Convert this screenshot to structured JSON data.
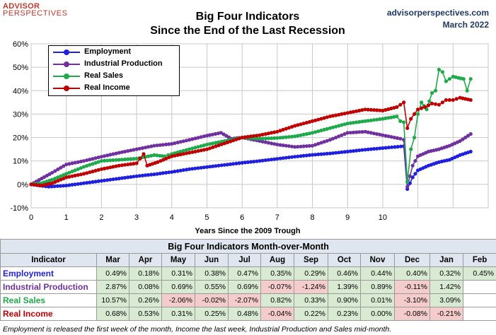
{
  "header": {
    "logo_line1": "ADVISOR",
    "logo_line2": "PERSPECTIVES",
    "title_line1": "Big Four Indicators",
    "title_line2": "Since the End of the Last Recession",
    "site": "advisorperspectives.com",
    "date": "March  2022"
  },
  "chart_data": {
    "type": "line",
    "title": "Big Four Indicators Since the End of the Last Recession",
    "xlabel": "Years Since the 2009 Trough",
    "ylabel": "",
    "xlim": [
      0,
      13
    ],
    "ylim": [
      -10,
      60
    ],
    "x_ticks": [
      "0",
      "1",
      "2",
      "3",
      "4",
      "5",
      "6",
      "7",
      "8",
      "9",
      "10"
    ],
    "y_ticks": [
      "-10%",
      "0%",
      "10%",
      "20%",
      "30%",
      "40%",
      "50%",
      "60%"
    ],
    "grid": true,
    "legend_position": "top-left",
    "series": [
      {
        "name": "Employment",
        "color": "#1f1fe0",
        "points": [
          [
            0,
            0
          ],
          [
            0.5,
            -1
          ],
          [
            1,
            -0.5
          ],
          [
            1.5,
            0.5
          ],
          [
            2,
            1.5
          ],
          [
            2.5,
            2.5
          ],
          [
            3,
            3.5
          ],
          [
            3.5,
            4.3
          ],
          [
            4,
            5.3
          ],
          [
            4.5,
            6.5
          ],
          [
            5,
            7.4
          ],
          [
            5.5,
            8.3
          ],
          [
            6,
            9.2
          ],
          [
            6.5,
            10
          ],
          [
            7,
            10.9
          ],
          [
            7.5,
            11.8
          ],
          [
            8,
            12.6
          ],
          [
            8.5,
            13.2
          ],
          [
            9,
            14
          ],
          [
            9.5,
            14.8
          ],
          [
            10,
            15.5
          ],
          [
            10.6,
            16.3
          ],
          [
            10.7,
            -2
          ],
          [
            10.85,
            3
          ],
          [
            11,
            6
          ],
          [
            11.3,
            8
          ],
          [
            11.6,
            9.5
          ],
          [
            11.9,
            10.5
          ],
          [
            12.2,
            12.5
          ],
          [
            12.5,
            14
          ]
        ]
      },
      {
        "name": "Industrial Production",
        "color": "#7030a0",
        "points": [
          [
            0,
            0
          ],
          [
            0.3,
            2.5
          ],
          [
            0.6,
            5
          ],
          [
            1,
            8.5
          ],
          [
            1.5,
            10
          ],
          [
            2,
            11.8
          ],
          [
            2.5,
            13.5
          ],
          [
            3,
            15
          ],
          [
            3.5,
            16.5
          ],
          [
            4,
            17.3
          ],
          [
            4.5,
            19
          ],
          [
            5,
            20.8
          ],
          [
            5.4,
            22
          ],
          [
            5.7,
            19.5
          ],
          [
            6,
            20
          ],
          [
            6.5,
            18.5
          ],
          [
            7,
            17
          ],
          [
            7.5,
            16
          ],
          [
            8,
            16.5
          ],
          [
            8.5,
            19
          ],
          [
            9,
            22
          ],
          [
            9.5,
            22.5
          ],
          [
            10,
            21
          ],
          [
            10.5,
            19.5
          ],
          [
            10.6,
            19
          ],
          [
            10.7,
            -1
          ],
          [
            10.85,
            8
          ],
          [
            11,
            12
          ],
          [
            11.3,
            14
          ],
          [
            11.6,
            15
          ],
          [
            11.9,
            16.5
          ],
          [
            12.2,
            18.5
          ],
          [
            12.5,
            21.5
          ]
        ]
      },
      {
        "name": "Real Sales",
        "color": "#1eaa4a",
        "points": [
          [
            0,
            0
          ],
          [
            0.3,
            0.5
          ],
          [
            0.6,
            2
          ],
          [
            1,
            4.5
          ],
          [
            1.5,
            7.5
          ],
          [
            2,
            10
          ],
          [
            2.5,
            10.5
          ],
          [
            3,
            11
          ],
          [
            3.5,
            12.5
          ],
          [
            3.8,
            12
          ],
          [
            4,
            13
          ],
          [
            4.5,
            15
          ],
          [
            5,
            17
          ],
          [
            5.5,
            18.5
          ],
          [
            6,
            20
          ],
          [
            6.5,
            19.5
          ],
          [
            7,
            19.8
          ],
          [
            7.5,
            20.5
          ],
          [
            8,
            22
          ],
          [
            8.5,
            24
          ],
          [
            9,
            26
          ],
          [
            9.5,
            27
          ],
          [
            10,
            28
          ],
          [
            10.4,
            29
          ],
          [
            10.5,
            27
          ],
          [
            10.6,
            26.5
          ],
          [
            10.7,
            1
          ],
          [
            10.8,
            15
          ],
          [
            10.9,
            20
          ],
          [
            11,
            30
          ],
          [
            11.1,
            35
          ],
          [
            11.25,
            32
          ],
          [
            11.4,
            39
          ],
          [
            11.5,
            40
          ],
          [
            11.6,
            49
          ],
          [
            11.7,
            48
          ],
          [
            11.8,
            44
          ],
          [
            12,
            46
          ],
          [
            12.3,
            45
          ],
          [
            12.4,
            40
          ],
          [
            12.5,
            45
          ]
        ]
      },
      {
        "name": "Real Income",
        "color": "#c00000",
        "points": [
          [
            0,
            0
          ],
          [
            0.3,
            -0.5
          ],
          [
            0.6,
            0.5
          ],
          [
            1,
            3
          ],
          [
            1.5,
            4.5
          ],
          [
            2,
            6.5
          ],
          [
            2.5,
            8
          ],
          [
            3,
            9
          ],
          [
            3.2,
            13
          ],
          [
            3.3,
            8
          ],
          [
            3.6,
            9.5
          ],
          [
            4,
            12
          ],
          [
            4.5,
            13.5
          ],
          [
            5,
            15
          ],
          [
            5.5,
            17.5
          ],
          [
            6,
            20
          ],
          [
            6.5,
            21
          ],
          [
            7,
            22.5
          ],
          [
            7.5,
            25
          ],
          [
            8,
            27
          ],
          [
            8.5,
            29
          ],
          [
            9,
            30.5
          ],
          [
            9.5,
            32
          ],
          [
            10,
            31.5
          ],
          [
            10.4,
            33
          ],
          [
            10.6,
            35
          ],
          [
            10.7,
            24
          ],
          [
            10.8,
            28
          ],
          [
            11,
            32
          ],
          [
            11.2,
            33
          ],
          [
            11.4,
            34.5
          ],
          [
            11.6,
            34
          ],
          [
            11.8,
            36
          ],
          [
            12,
            36
          ],
          [
            12.2,
            37
          ],
          [
            12.5,
            36
          ]
        ]
      }
    ]
  },
  "table": {
    "caption": "Big Four Indicators Month-over-Month",
    "indicator_header": "Indicator",
    "months": [
      "Mar",
      "Apr",
      "May",
      "Jun",
      "Jul",
      "Aug",
      "Sep",
      "Oct",
      "Nov",
      "Dec",
      "Jan",
      "Feb"
    ],
    "rows": [
      {
        "name": "Employment",
        "color": "#1f1fe0",
        "values": [
          "0.49%",
          "0.18%",
          "0.31%",
          "0.38%",
          "0.47%",
          "0.35%",
          "0.29%",
          "0.46%",
          "0.44%",
          "0.40%",
          "0.32%",
          "0.45%"
        ]
      },
      {
        "name": "Industrial Production",
        "color": "#7030a0",
        "values": [
          "2.87%",
          "0.08%",
          "0.69%",
          "0.55%",
          "0.69%",
          "-0.07%",
          "-1.24%",
          "1.39%",
          "0.89%",
          "-0.11%",
          "1.42%",
          ""
        ]
      },
      {
        "name": "Real Sales",
        "color": "#1eaa4a",
        "values": [
          "10.57%",
          "0.26%",
          "-2.06%",
          "-0.02%",
          "-2.07%",
          "0.82%",
          "0.33%",
          "0.90%",
          "0.01%",
          "-3.10%",
          "3.09%",
          ""
        ]
      },
      {
        "name": "Real Income",
        "color": "#c00000",
        "values": [
          "0.68%",
          "0.53%",
          "0.31%",
          "0.25%",
          "0.48%",
          "-0.04%",
          "0.22%",
          "0.23%",
          "0.00%",
          "-0.08%",
          "-0.21%",
          ""
        ]
      }
    ]
  },
  "footnote": "Employment is released the first week of the month, Income the last week, Industrial Production and Sales mid-month."
}
